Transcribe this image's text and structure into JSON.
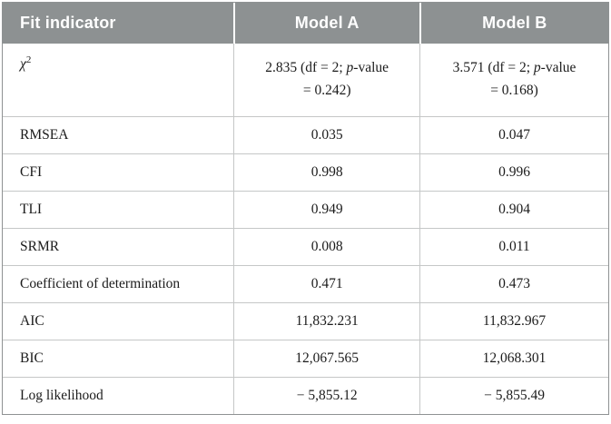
{
  "table": {
    "columns": [
      "Fit indicator",
      "Model A",
      "Model B"
    ],
    "chi_row": {
      "label_base": "χ",
      "label_sup": "2",
      "model_a": {
        "pre": "2.835 (df = 2; ",
        "p": "p",
        "post": "-value",
        "line2": "= 0.242)"
      },
      "model_b": {
        "pre": "3.571 (df = 2; ",
        "p": "p",
        "post": "-value",
        "line2": "= 0.168)"
      }
    },
    "rows": [
      {
        "label": "RMSEA",
        "model_a": "0.035",
        "model_b": "0.047"
      },
      {
        "label": "CFI",
        "model_a": "0.998",
        "model_b": "0.996"
      },
      {
        "label": "TLI",
        "model_a": "0.949",
        "model_b": "0.904"
      },
      {
        "label": "SRMR",
        "model_a": "0.008",
        "model_b": "0.011"
      },
      {
        "label": "Coefficient of determination",
        "model_a": "0.471",
        "model_b": "0.473"
      },
      {
        "label": "AIC",
        "model_a": "11,832.231",
        "model_b": "11,832.967"
      },
      {
        "label": "BIC",
        "model_a": "12,067.565",
        "model_b": "12,068.301"
      },
      {
        "label": "Log likelihood",
        "model_a": "− 5,855.12",
        "model_b": "− 5,855.49"
      }
    ],
    "colors": {
      "header_bg": "#8d9192",
      "header_text": "#ffffff",
      "outer_border": "#8f9293",
      "inner_line": "#c5c7c7",
      "body_text": "#1b1b1b"
    }
  }
}
